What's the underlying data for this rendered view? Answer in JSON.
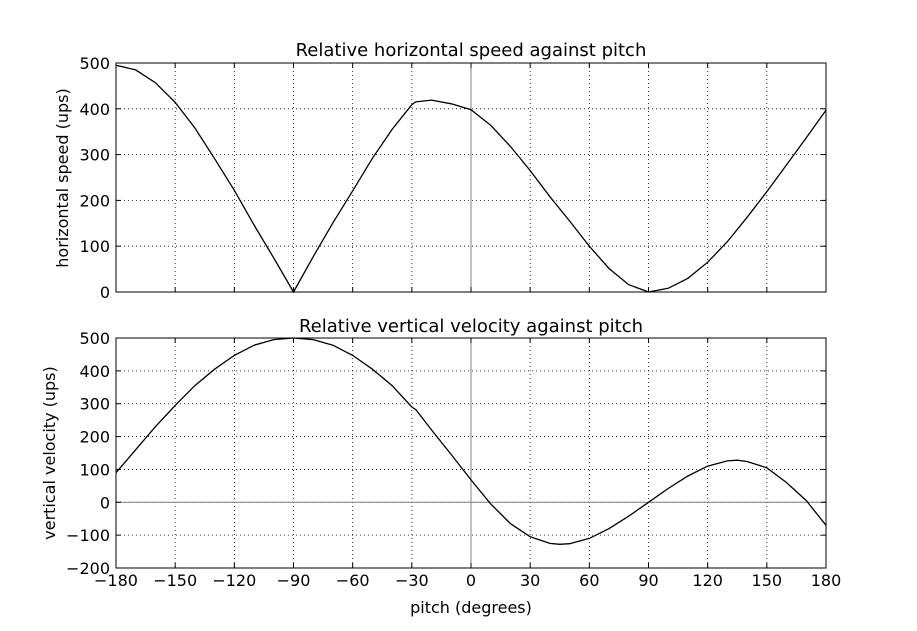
{
  "chart_data": [
    {
      "type": "line",
      "title": "Relative horizontal speed against pitch",
      "xlabel": "",
      "ylabel": "horizontal speed (ups)",
      "xlim": [
        -180,
        180
      ],
      "ylim": [
        0,
        500
      ],
      "yticks": [
        0,
        100,
        200,
        300,
        400,
        500
      ],
      "ytick_labels": [
        "0",
        "100",
        "200",
        "300",
        "400",
        "500"
      ],
      "xticks": [
        -180,
        -150,
        -120,
        -90,
        -60,
        -30,
        0,
        30,
        60,
        90,
        120,
        150,
        180
      ],
      "xtick_labels": [],
      "grid": true,
      "reference_lines": {
        "x": 0
      },
      "series": [
        {
          "values": [
            [
              -180,
              495
            ],
            [
              -170,
              485
            ],
            [
              -160,
              457
            ],
            [
              -150,
              414
            ],
            [
              -140,
              358
            ],
            [
              -130,
              291
            ],
            [
              -120,
              222
            ],
            [
              -110,
              146
            ],
            [
              -100,
              74
            ],
            [
              -90,
              0
            ],
            [
              -80,
              77
            ],
            [
              -70,
              151
            ],
            [
              -60,
              221
            ],
            [
              -50,
              292
            ],
            [
              -40,
              355
            ],
            [
              -30,
              409
            ],
            [
              -28,
              415
            ],
            [
              -20,
              419
            ],
            [
              -10,
              411
            ],
            [
              0,
              398
            ],
            [
              10,
              364
            ],
            [
              20,
              318
            ],
            [
              30,
              265
            ],
            [
              40,
              208
            ],
            [
              50,
              155
            ],
            [
              60,
              100
            ],
            [
              70,
              51
            ],
            [
              80,
              16
            ],
            [
              90,
              0
            ],
            [
              100,
              8
            ],
            [
              110,
              30
            ],
            [
              120,
              65
            ],
            [
              130,
              110
            ],
            [
              140,
              163
            ],
            [
              150,
              219
            ],
            [
              160,
              278
            ],
            [
              170,
              337
            ],
            [
              180,
              397
            ]
          ]
        }
      ]
    },
    {
      "type": "line",
      "title": "Relative vertical velocity against pitch",
      "xlabel": "pitch (degrees)",
      "ylabel": "vertical velocity (ups)",
      "xlim": [
        -180,
        180
      ],
      "ylim": [
        -200,
        500
      ],
      "yticks": [
        -200,
        -100,
        0,
        100,
        200,
        300,
        400,
        500
      ],
      "ytick_labels": [
        "−200",
        "−100",
        "0",
        "100",
        "200",
        "300",
        "400",
        "500"
      ],
      "xticks": [
        -180,
        -150,
        -120,
        -90,
        -60,
        -30,
        0,
        30,
        60,
        90,
        120,
        150,
        180
      ],
      "xtick_labels": [
        "−180",
        "−150",
        "−120",
        "−90",
        "−60",
        "−30",
        "0",
        "30",
        "60",
        "90",
        "120",
        "150",
        "180"
      ],
      "grid": true,
      "reference_lines": {
        "x": 0,
        "y": 0
      },
      "series": [
        {
          "values": [
            [
              -180,
              90
            ],
            [
              -170,
              160
            ],
            [
              -160,
              230
            ],
            [
              -150,
              295
            ],
            [
              -140,
              355
            ],
            [
              -130,
              405
            ],
            [
              -120,
              447
            ],
            [
              -110,
              478
            ],
            [
              -100,
              495
            ],
            [
              -90,
              500
            ],
            [
              -80,
              495
            ],
            [
              -70,
              478
            ],
            [
              -60,
              447
            ],
            [
              -50,
              405
            ],
            [
              -40,
              355
            ],
            [
              -30,
              290
            ],
            [
              -28,
              282
            ],
            [
              -20,
              220
            ],
            [
              -10,
              145
            ],
            [
              0,
              68
            ],
            [
              10,
              -5
            ],
            [
              20,
              -65
            ],
            [
              30,
              -105
            ],
            [
              40,
              -125
            ],
            [
              45,
              -128
            ],
            [
              50,
              -126
            ],
            [
              60,
              -110
            ],
            [
              70,
              -80
            ],
            [
              80,
              -42
            ],
            [
              90,
              0
            ],
            [
              100,
              42
            ],
            [
              110,
              80
            ],
            [
              120,
              110
            ],
            [
              130,
              126
            ],
            [
              135,
              128
            ],
            [
              140,
              124
            ],
            [
              150,
              105
            ],
            [
              160,
              60
            ],
            [
              170,
              5
            ],
            [
              180,
              -70
            ]
          ]
        }
      ]
    }
  ]
}
